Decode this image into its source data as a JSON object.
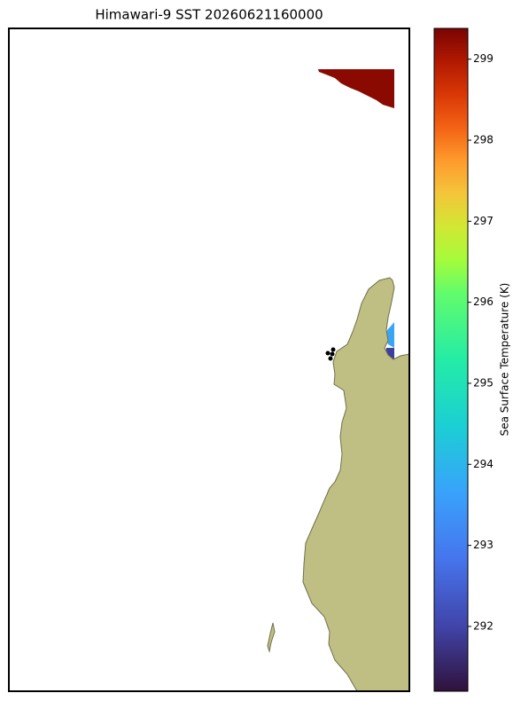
{
  "chart_data": {
    "type": "map",
    "title": "Himawari-9 SST 20260621160000",
    "colorbar_label": "Sea Surface Temperature (K)",
    "clim": [
      291.2,
      299.38
    ],
    "colorbar_ticks": [
      292,
      293,
      294,
      295,
      296,
      297,
      298,
      299
    ]
  }
}
